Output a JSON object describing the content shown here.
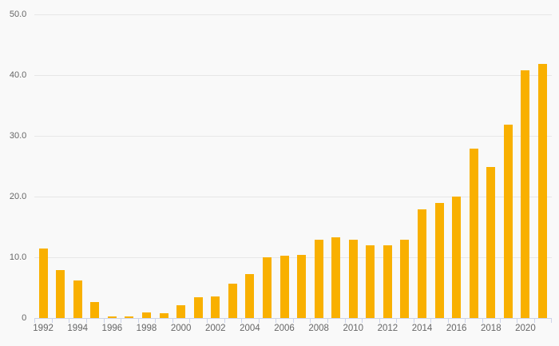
{
  "page": {
    "background_color": "#f9f9f9"
  },
  "chart_data": {
    "type": "bar",
    "title": "",
    "xlabel": "",
    "ylabel": "",
    "categories": [
      "1992",
      "1993",
      "1994",
      "1995",
      "1996",
      "1997",
      "1998",
      "1999",
      "2000",
      "2001",
      "2002",
      "2003",
      "2004",
      "2005",
      "2006",
      "2007",
      "2008",
      "2009",
      "2010",
      "2011",
      "2012",
      "2013",
      "2014",
      "2015",
      "2016",
      "2017",
      "2018",
      "2019",
      "2020",
      "2021"
    ],
    "values": [
      11.5,
      8.0,
      6.2,
      2.7,
      0.3,
      0.3,
      1.0,
      0.8,
      2.2,
      3.4,
      3.6,
      5.7,
      7.3,
      10.0,
      10.3,
      10.5,
      13.0,
      13.3,
      13.0,
      12.0,
      12.0,
      13.0,
      18.0,
      19.0,
      20.0,
      27.9,
      24.9,
      31.9,
      40.8,
      41.9
    ],
    "ylim": [
      0,
      50
    ],
    "ytick_values": [
      50,
      40,
      30,
      20,
      10,
      0
    ],
    "ytick_labels": [
      "50.0",
      "40.0",
      "30.0",
      "20.0",
      "10.0",
      "0"
    ],
    "xtick_labels": [
      "1992",
      "1994",
      "1996",
      "1998",
      "2000",
      "2002",
      "2004",
      "2006",
      "2008",
      "2010",
      "2012",
      "2014",
      "2016",
      "2018",
      "2020"
    ],
    "xtick_every": 2,
    "grid": true,
    "legend": "none",
    "colors": {
      "bar": "#F9B000",
      "grid_line": "#E7E7E7",
      "axis_line": "#CCD3E8",
      "tick_mark": "#CCD3E8",
      "label_text": "#666666",
      "background": "#F9F9F9"
    }
  }
}
